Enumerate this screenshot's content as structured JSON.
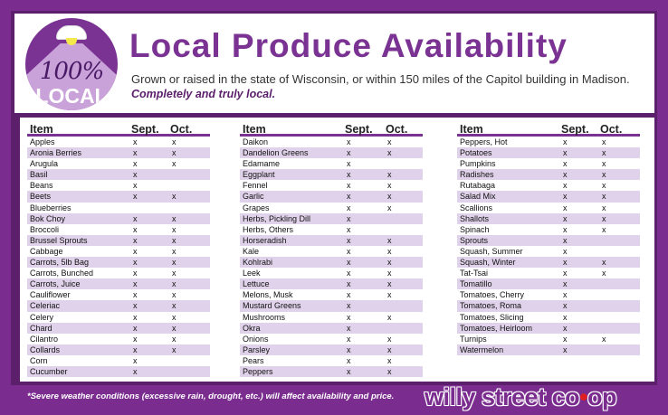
{
  "header": {
    "badge_percent": "100%",
    "badge_word": "LOCAL",
    "title": "Local Produce Availability",
    "subtitle": "Grown or raised in the state of Wisconsin, or within 150 miles of the Capitol building in Madison.",
    "tagline": "Completely and truly local."
  },
  "table_headers": {
    "item": "Item",
    "sept": "Sept.",
    "oct": "Oct."
  },
  "columns": [
    [
      [
        "Apples",
        "x",
        "x"
      ],
      [
        "Aronia Berries",
        "x",
        "x"
      ],
      [
        "Arugula",
        "x",
        "x"
      ],
      [
        "Basil",
        "x",
        ""
      ],
      [
        "Beans",
        "x",
        ""
      ],
      [
        "Beets",
        "x",
        "x"
      ],
      [
        "Blueberries",
        "",
        ""
      ],
      [
        "Bok Choy",
        "x",
        "x"
      ],
      [
        "Broccoli",
        "x",
        "x"
      ],
      [
        "Brussel Sprouts",
        "x",
        "x"
      ],
      [
        "Cabbage",
        "x",
        "x"
      ],
      [
        "Carrots, 5lb Bag",
        "x",
        "x"
      ],
      [
        "Carrots, Bunched",
        "x",
        "x"
      ],
      [
        "Carrots, Juice",
        "x",
        "x"
      ],
      [
        "Cauliflower",
        "x",
        "x"
      ],
      [
        "Celeriac",
        "x",
        "x"
      ],
      [
        "Celery",
        "x",
        "x"
      ],
      [
        "Chard",
        "x",
        "x"
      ],
      [
        "Cilantro",
        "x",
        "x"
      ],
      [
        "Collards",
        "x",
        "x"
      ],
      [
        "Corn",
        "x",
        ""
      ],
      [
        "Cucumber",
        "x",
        ""
      ]
    ],
    [
      [
        "Daikon",
        "x",
        "x"
      ],
      [
        "Dandelion Greens",
        "x",
        "x"
      ],
      [
        "Edamame",
        "x",
        ""
      ],
      [
        "Eggplant",
        "x",
        "x"
      ],
      [
        "Fennel",
        "x",
        "x"
      ],
      [
        "Garlic",
        "x",
        "x"
      ],
      [
        "Grapes",
        "x",
        "x"
      ],
      [
        "Herbs, Pickling Dill",
        "x",
        ""
      ],
      [
        "Herbs, Others",
        "x",
        ""
      ],
      [
        "Horseradish",
        "x",
        "x"
      ],
      [
        "Kale",
        "x",
        "x"
      ],
      [
        "Kohlrabi",
        "x",
        "x"
      ],
      [
        "Leek",
        "x",
        "x"
      ],
      [
        "Lettuce",
        "x",
        "x"
      ],
      [
        "Melons, Musk",
        "x",
        "x"
      ],
      [
        "Mustard Greens",
        "x",
        ""
      ],
      [
        "Mushrooms",
        "x",
        "x"
      ],
      [
        "Okra",
        "x",
        ""
      ],
      [
        "Onions",
        "x",
        "x"
      ],
      [
        "Parsley",
        "x",
        "x"
      ],
      [
        "Pears",
        "x",
        "x"
      ],
      [
        "Peppers",
        "x",
        "x"
      ]
    ],
    [
      [
        "Peppers, Hot",
        "x",
        "x"
      ],
      [
        "Potatoes",
        "x",
        "x"
      ],
      [
        "Pumpkins",
        "x",
        "x"
      ],
      [
        "Radishes",
        "x",
        "x"
      ],
      [
        "Rutabaga",
        "x",
        "x"
      ],
      [
        "Salad Mix",
        "x",
        "x"
      ],
      [
        "Scallions",
        "x",
        "x"
      ],
      [
        "Shallots",
        "x",
        "x"
      ],
      [
        "Spinach",
        "x",
        "x"
      ],
      [
        "Sprouts",
        "x",
        ""
      ],
      [
        "Squash, Summer",
        "x",
        ""
      ],
      [
        "Squash, Winter",
        "x",
        "x"
      ],
      [
        "Tat-Tsai",
        "x",
        "x"
      ],
      [
        "Tomatillo",
        "x",
        ""
      ],
      [
        "Tomatoes, Cherry",
        "x",
        ""
      ],
      [
        "Tomatoes, Roma",
        "x",
        ""
      ],
      [
        "Tomatoes, Slicing",
        "x",
        ""
      ],
      [
        "Tomatoes, Heirloom",
        "x",
        ""
      ],
      [
        "Turnips",
        "x",
        "x"
      ],
      [
        "Watermelon",
        "x",
        ""
      ]
    ]
  ],
  "footer": {
    "footnote": "*Severe weather conditions (excessive rain, drought, etc.) will affect availability and price.",
    "logo": "willy street co-op"
  },
  "colors": {
    "brand_purple": "#7a2c8f",
    "title_purple": "#7b3393",
    "stripe": "#e0d2ea"
  }
}
